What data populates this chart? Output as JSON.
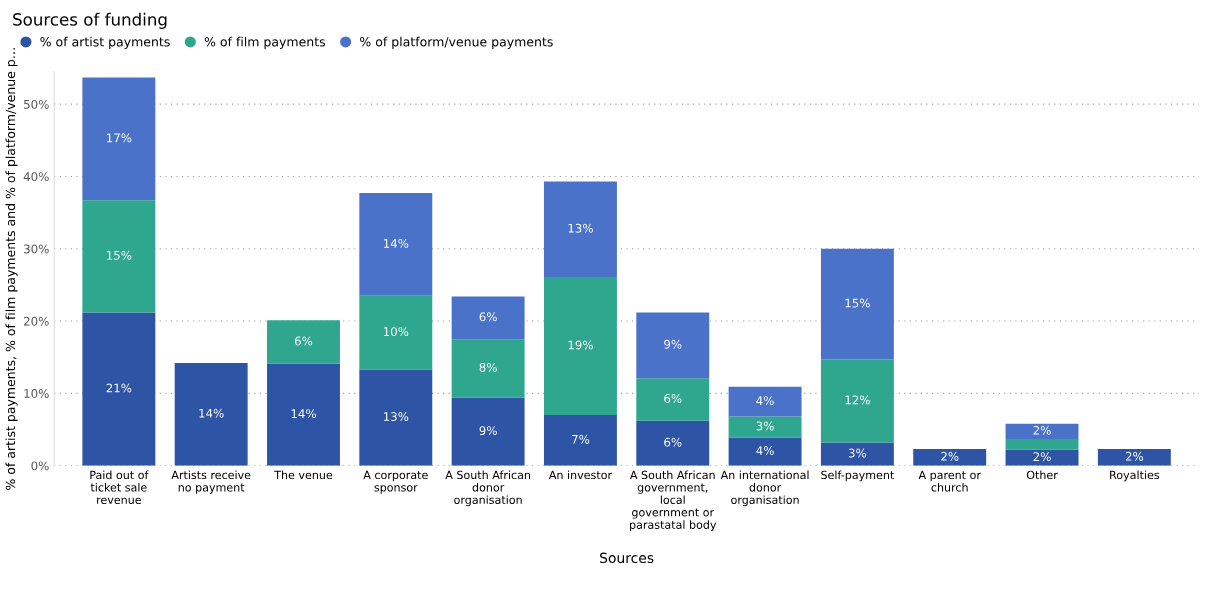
{
  "chart_data": {
    "type": "bar",
    "title": "Sources of funding",
    "xlabel": "Sources",
    "ylabel": "% of artist payments, % of film payments and % of platform/venue p…",
    "categories": [
      "Paid out of\nticket sale\nrevenue",
      "Artists receive\nno payment",
      "The venue",
      "A corporate\nsponsor",
      "A South African\ndonor\norganisation",
      "An investor",
      "A South African\ngovernment,\nlocal\ngovernment or\nparastatal body",
      "An international\ndonor\norganisation",
      "Self-payment",
      "A parent or\nchurch",
      "Other",
      "Royalties"
    ],
    "stacked": true,
    "legend": "top left",
    "grid": "y",
    "ylim": [
      0,
      54.5
    ],
    "yticks": [
      {
        "value": 0,
        "label": "0%"
      },
      {
        "value": 10,
        "label": "10%"
      },
      {
        "value": 20,
        "label": "20%"
      },
      {
        "value": 30,
        "label": "30%"
      },
      {
        "value": 40,
        "label": "40%"
      },
      {
        "value": 50,
        "label": "50%"
      }
    ],
    "series": [
      {
        "name": "% of artist payments",
        "color": "#2e55a5",
        "values": [
          21.2,
          14.2,
          14.1,
          13.3,
          9.4,
          7.0,
          6.2,
          3.9,
          3.2,
          2.3,
          2.2,
          2.3
        ],
        "value_labels": [
          "21%",
          "14%",
          "14%",
          "13%",
          "9%",
          "7%",
          "6%",
          "4%",
          "3%",
          "2%",
          "2%",
          "2%"
        ]
      },
      {
        "name": "% of film payments",
        "color": "#2fa68e",
        "values": [
          15.5,
          null,
          6.0,
          10.2,
          8.1,
          19.1,
          5.9,
          2.9,
          11.5,
          null,
          1.5,
          null
        ],
        "value_labels": [
          "15%",
          null,
          "6%",
          "10%",
          "8%",
          "19%",
          "6%",
          "3%",
          "12%",
          null,
          null,
          null
        ]
      },
      {
        "name": "% of platform/venue payments",
        "color": "#4a72c8",
        "values": [
          17.0,
          null,
          null,
          14.2,
          5.9,
          13.2,
          9.1,
          4.1,
          15.3,
          null,
          2.1,
          null
        ],
        "value_labels": [
          "17%",
          null,
          null,
          "14%",
          "6%",
          "13%",
          "9%",
          "4%",
          "15%",
          null,
          "2%",
          null
        ]
      }
    ]
  }
}
